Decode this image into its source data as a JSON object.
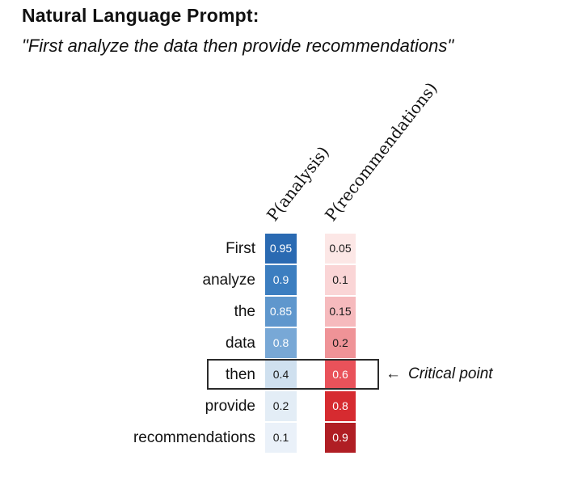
{
  "header": {
    "title": "Natural Language Prompt:",
    "quote": "\"First analyze the data then provide recommendations\""
  },
  "chart_data": {
    "type": "heatmap",
    "rows": [
      "First",
      "analyze",
      "the",
      "data",
      "then",
      "provide",
      "recommendations"
    ],
    "columns": [
      "P(analysis)",
      "P(recommendations)"
    ],
    "series": [
      {
        "name": "P(analysis)",
        "values": [
          0.95,
          0.9,
          0.85,
          0.8,
          0.4,
          0.2,
          0.1
        ],
        "cell_colors": [
          "#2a6ab2",
          "#3c7ec0",
          "#5f97cd",
          "#78a8d6",
          "#cfe0ef",
          "#e3edf6",
          "#eaf1f9"
        ],
        "text_colors": [
          "#ffffff",
          "#ffffff",
          "#ffffff",
          "#ffffff",
          "#1a1a1a",
          "#1a1a1a",
          "#1a1a1a"
        ]
      },
      {
        "name": "P(recommendations)",
        "values": [
          0.05,
          0.1,
          0.15,
          0.2,
          0.6,
          0.8,
          0.9
        ],
        "cell_colors": [
          "#fce7e6",
          "#fad5d6",
          "#f6babd",
          "#ef9397",
          "#e9525a",
          "#d62b30",
          "#b01e24"
        ],
        "text_colors": [
          "#1a1a1a",
          "#1a1a1a",
          "#1a1a1a",
          "#1a1a1a",
          "#ffffff",
          "#ffffff",
          "#ffffff"
        ]
      }
    ],
    "value_range": [
      0,
      1
    ],
    "colormap": "blue-red-diverging",
    "highlight": {
      "row": "then",
      "row_index": 4
    },
    "annotation": {
      "arrow": "←",
      "label": "Critical point"
    }
  }
}
